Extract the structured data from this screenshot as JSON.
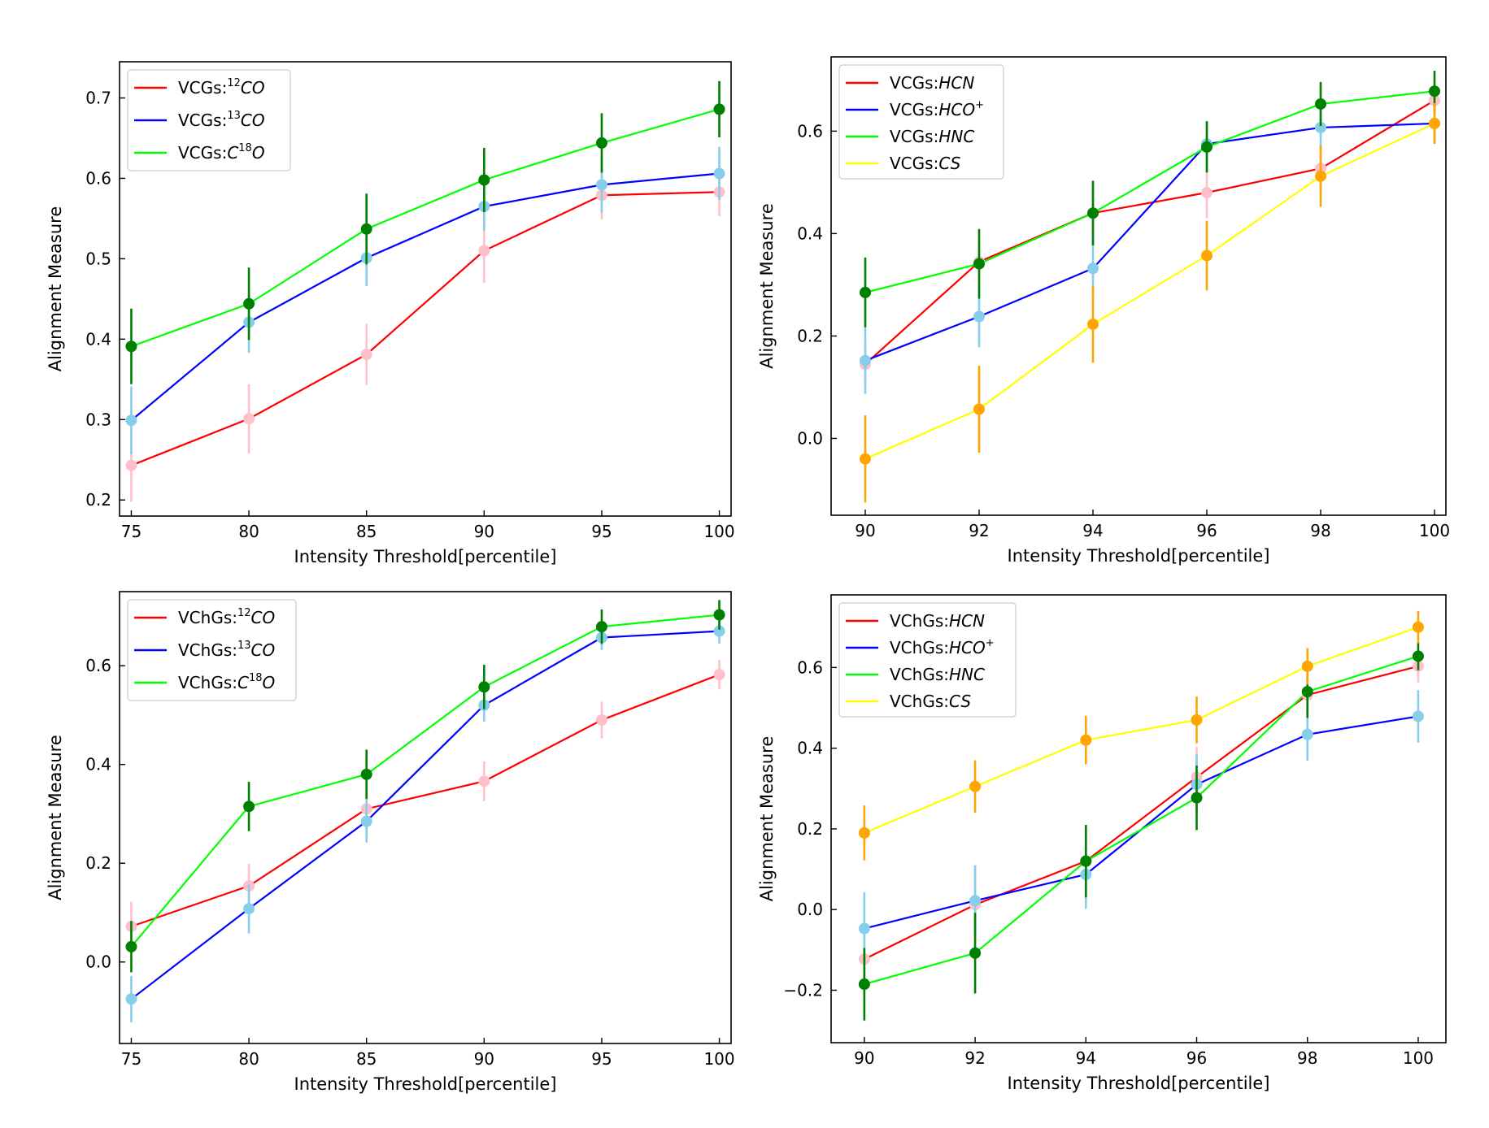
{
  "chart_data": [
    {
      "type": "line",
      "position": "top-left",
      "xlabel": "Intensity Threshold[percentile]",
      "ylabel": "Alignment Measure",
      "x": [
        75,
        80,
        85,
        90,
        95,
        100
      ],
      "xlim": [
        74.5,
        100.5
      ],
      "ylim": [
        0.18,
        0.745
      ],
      "xticks": [
        "75",
        "80",
        "85",
        "90",
        "95",
        "100"
      ],
      "yticks": [
        0.2,
        0.3,
        0.4,
        0.5,
        0.6,
        0.7
      ],
      "ytick_labels": [
        "0.2",
        "0.3",
        "0.4",
        "0.5",
        "0.6",
        "0.7"
      ],
      "legend_position": "top-left",
      "series": [
        {
          "prefix": "VCGs:",
          "sup": "12",
          "name": "CO",
          "line_color": "#ff0000",
          "marker_color": "#ffc0cb",
          "values": [
            0.243,
            0.301,
            0.381,
            0.51,
            0.579,
            0.583
          ],
          "errors": [
            0.045,
            0.043,
            0.038,
            0.04,
            0.03,
            0.03
          ]
        },
        {
          "prefix": "VCGs:",
          "sup": "13",
          "name": "CO",
          "line_color": "#0000ff",
          "marker_color": "#87ceeb",
          "values": [
            0.299,
            0.421,
            0.501,
            0.565,
            0.592,
            0.606
          ],
          "errors": [
            0.042,
            0.038,
            0.035,
            0.03,
            0.035,
            0.033
          ]
        },
        {
          "prefix": "VCGs:",
          "name": "C",
          "sup": "18",
          "suffix": "O",
          "line_color": "#00ff00",
          "marker_color": "#008000",
          "values": [
            0.391,
            0.444,
            0.537,
            0.598,
            0.644,
            0.686
          ],
          "errors": [
            0.047,
            0.045,
            0.044,
            0.04,
            0.037,
            0.035
          ]
        }
      ]
    },
    {
      "type": "line",
      "position": "top-right",
      "xlabel": "Intensity Threshold[percentile]",
      "ylabel": "Alignment Measure",
      "x": [
        90,
        92,
        94,
        96,
        98,
        100
      ],
      "xlim": [
        89.4,
        100.2
      ],
      "ylim": [
        -0.15,
        0.745
      ],
      "xticks": [
        "90",
        "92",
        "94",
        "96",
        "98",
        "100"
      ],
      "yticks": [
        0.0,
        0.2,
        0.4,
        0.6
      ],
      "ytick_labels": [
        "0.0",
        "0.2",
        "0.4",
        "0.6"
      ],
      "legend_position": "top-left",
      "series": [
        {
          "prefix": "VCGs:",
          "name": "HCN",
          "line_color": "#ff0000",
          "marker_color": "#ffc0cb",
          "values": [
            0.145,
            0.345,
            0.44,
            0.48,
            0.527,
            0.66
          ],
          "errors": [
            0.045,
            0.05,
            0.05,
            0.05,
            0.045,
            0.04
          ]
        },
        {
          "prefix": "VCGs:",
          "name": "HCO",
          "sup": "+",
          "line_color": "#0000ff",
          "marker_color": "#87ceeb",
          "values": [
            0.152,
            0.238,
            0.332,
            0.575,
            0.607,
            0.615
          ],
          "errors": [
            0.065,
            0.06,
            0.055,
            0.045,
            0.04,
            0.04
          ]
        },
        {
          "prefix": "VCGs:",
          "name": "HNC",
          "line_color": "#00ff00",
          "marker_color": "#008000",
          "values": [
            0.285,
            0.341,
            0.44,
            0.569,
            0.653,
            0.678
          ],
          "errors": [
            0.068,
            0.068,
            0.063,
            0.05,
            0.043,
            0.04
          ]
        },
        {
          "prefix": "VCGs:",
          "name": "CS",
          "line_color": "#ffff00",
          "marker_color": "#ffa500",
          "values": [
            -0.04,
            0.057,
            0.223,
            0.357,
            0.512,
            0.615
          ],
          "errors": [
            0.085,
            0.085,
            0.075,
            0.068,
            0.06,
            0.04
          ]
        }
      ]
    },
    {
      "type": "line",
      "position": "bottom-left",
      "xlabel": "Intensity Threshold[percentile]",
      "ylabel": "Alignment Measure",
      "x": [
        75,
        80,
        85,
        90,
        95,
        100
      ],
      "xlim": [
        74.5,
        100.5
      ],
      "ylim": [
        -0.165,
        0.75
      ],
      "xticks": [
        "75",
        "80",
        "85",
        "90",
        "95",
        "100"
      ],
      "yticks": [
        0.0,
        0.2,
        0.4,
        0.6
      ],
      "ytick_labels": [
        "0.0",
        "0.2",
        "0.4",
        "0.6"
      ],
      "legend_position": "top-left",
      "series": [
        {
          "prefix": "VChGs:",
          "sup": "12",
          "name": "CO",
          "line_color": "#ff0000",
          "marker_color": "#ffc0cb",
          "values": [
            0.072,
            0.154,
            0.31,
            0.366,
            0.49,
            0.582
          ],
          "errors": [
            0.05,
            0.045,
            0.04,
            0.04,
            0.037,
            0.03
          ]
        },
        {
          "prefix": "VChGs:",
          "sup": "13",
          "name": "CO",
          "line_color": "#0000ff",
          "marker_color": "#87ceeb",
          "values": [
            -0.075,
            0.108,
            0.285,
            0.52,
            0.657,
            0.67
          ],
          "errors": [
            0.047,
            0.05,
            0.043,
            0.033,
            0.025,
            0.025
          ]
        },
        {
          "prefix": "VChGs:",
          "name": "C",
          "sup": "18",
          "suffix": "O",
          "line_color": "#00ff00",
          "marker_color": "#008000",
          "values": [
            0.031,
            0.315,
            0.38,
            0.557,
            0.679,
            0.703
          ],
          "errors": [
            0.052,
            0.05,
            0.05,
            0.045,
            0.035,
            0.03
          ]
        }
      ]
    },
    {
      "type": "line",
      "position": "bottom-right",
      "xlabel": "Intensity Threshold[percentile]",
      "ylabel": "Alignment Measure",
      "x": [
        90,
        92,
        94,
        96,
        98,
        100
      ],
      "xlim": [
        89.4,
        100.5
      ],
      "ylim": [
        -0.33,
        0.78
      ],
      "xticks": [
        "90",
        "92",
        "94",
        "96",
        "98",
        "100"
      ],
      "yticks": [
        -0.2,
        0.0,
        0.2,
        0.4,
        0.6
      ],
      "ytick_labels": [
        "−0.2",
        "0.0",
        "0.2",
        "0.4",
        "0.6"
      ],
      "legend_position": "top-left",
      "series": [
        {
          "prefix": "VChGs:",
          "name": "HCN",
          "line_color": "#ff0000",
          "marker_color": "#ffc0cb",
          "values": [
            -0.123,
            0.012,
            0.12,
            0.328,
            0.532,
            0.603
          ],
          "errors": [
            0.07,
            0.09,
            0.085,
            0.075,
            0.065,
            0.04
          ]
        },
        {
          "prefix": "VChGs:",
          "name": "HCO",
          "sup": "+",
          "line_color": "#0000ff",
          "marker_color": "#87ceeb",
          "values": [
            -0.047,
            0.022,
            0.087,
            0.31,
            0.434,
            0.479
          ],
          "errors": [
            0.09,
            0.088,
            0.085,
            0.075,
            0.065,
            0.065
          ]
        },
        {
          "prefix": "VChGs:",
          "name": "HNC",
          "line_color": "#00ff00",
          "marker_color": "#008000",
          "values": [
            -0.185,
            -0.108,
            0.12,
            0.277,
            0.54,
            0.628
          ],
          "errors": [
            0.09,
            0.1,
            0.09,
            0.08,
            0.065,
            0.035
          ]
        },
        {
          "prefix": "VChGs:",
          "name": "CS",
          "line_color": "#ffff00",
          "marker_color": "#ffa500",
          "values": [
            0.19,
            0.305,
            0.42,
            0.47,
            0.603,
            0.7
          ],
          "errors": [
            0.068,
            0.065,
            0.06,
            0.058,
            0.045,
            0.04
          ]
        }
      ]
    }
  ]
}
